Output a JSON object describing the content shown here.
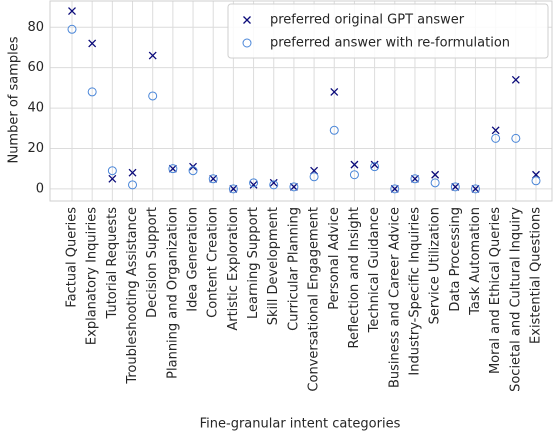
{
  "chart_data": {
    "type": "scatter",
    "xlabel": "Fine-granular intent categories",
    "ylabel": "Number of samples",
    "categories": [
      "Factual Queries",
      "Explanatory Inquiries",
      "Tutorial Requests",
      "Troubleshooting Assistance",
      "Decision Support",
      "Planning and Organization",
      "Idea Generation",
      "Content Creation",
      "Artistic Exploration",
      "Learning Support",
      "Skill Development",
      "Curricular Planning",
      "Conversational Engagement",
      "Personal Advice",
      "Reflection and Insight",
      "Technical Guidance",
      "Business and Career Advice",
      "Industry-Specific Inquiries",
      "Service Utilization",
      "Data Processing",
      "Task Automation",
      "Moral and Ethical Queries",
      "Societal and Cultural Inquiry",
      "Existential Questions"
    ],
    "series": [
      {
        "name": "preferred original GPT answer",
        "color": "#0b0b7a",
        "marker": "x",
        "values": [
          88,
          72,
          5,
          8,
          66,
          10,
          11,
          5,
          0,
          2,
          3,
          1,
          9,
          48,
          12,
          12,
          0,
          5,
          7,
          1,
          0,
          29,
          54,
          7
        ]
      },
      {
        "name": "preferred answer with re-formulation",
        "color": "#4a86d8",
        "marker": "o",
        "values": [
          79,
          48,
          9,
          2,
          46,
          10,
          9,
          5,
          0,
          3,
          2,
          1,
          6,
          29,
          7,
          11,
          0,
          5,
          3,
          1,
          0,
          25,
          25,
          4
        ]
      }
    ],
    "ylim": [
      -6,
      93
    ],
    "yticks": [
      0,
      20,
      40,
      60,
      80
    ],
    "grid": true,
    "legend": "upper right"
  }
}
